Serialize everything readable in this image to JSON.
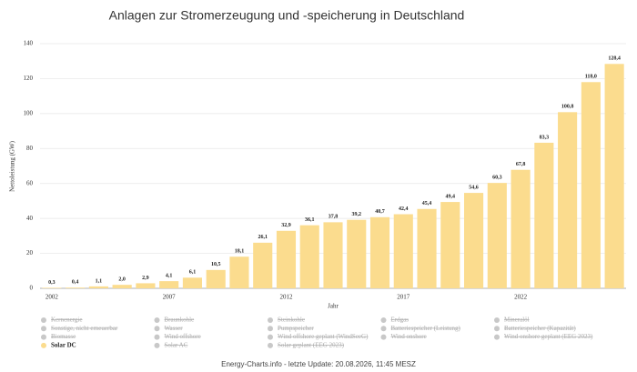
{
  "chart_data": {
    "type": "bar",
    "title": "Anlagen zur Stromerzeugung und -speicherung in Deutschland",
    "x_label": "Jahr",
    "y_label": "Nettoleistung (GW)",
    "categories": [
      "2002",
      null,
      null,
      null,
      null,
      "2007",
      null,
      null,
      null,
      null,
      "2012",
      null,
      null,
      null,
      null,
      "2017",
      null,
      null,
      null,
      null,
      "2022",
      null,
      null,
      null,
      null
    ],
    "ylim": [
      0,
      140
    ],
    "yticks": [
      0,
      20,
      40,
      60,
      80,
      100,
      120,
      140
    ],
    "grid": true,
    "series": [
      {
        "name": "Kernenergie",
        "visible": false
      },
      {
        "name": "Braunkohle",
        "visible": false
      },
      {
        "name": "Steinkohle",
        "visible": false
      },
      {
        "name": "Erdgas",
        "visible": false
      },
      {
        "name": "Mineralöl",
        "visible": false
      },
      {
        "name": "Sonstige, nicht erneuerbar",
        "visible": false
      },
      {
        "name": "Wasser",
        "visible": false
      },
      {
        "name": "Pumpspeicher",
        "visible": false
      },
      {
        "name": "Batteriespeicher (Leistung)",
        "visible": false
      },
      {
        "name": "Batteriespeicher (Kapazität)",
        "visible": false
      },
      {
        "name": "Biomasse",
        "visible": false
      },
      {
        "name": "Wind offshore",
        "visible": false
      },
      {
        "name": "Wind offshore geplant (WindSeeG)",
        "visible": false
      },
      {
        "name": "Wind onshore",
        "visible": false
      },
      {
        "name": "Wind onshore geplant (EEG 2023)",
        "visible": false
      },
      {
        "name": "Solar DC",
        "visible": true,
        "color": "#fbdc8e",
        "values": [
          0.3,
          0.4,
          1.1,
          2.0,
          2.9,
          4.1,
          6.1,
          10.5,
          18.1,
          26.1,
          32.9,
          36.1,
          37.8,
          39.2,
          40.7,
          42.4,
          45.4,
          49.4,
          54.6,
          60.3,
          67.8,
          83.3,
          100.8,
          118.0,
          128.4
        ],
        "value_labels": [
          "0,3",
          "0,4",
          "1,1",
          "2,0",
          "2,9",
          "4,1",
          "6,1",
          "10,5",
          "18,1",
          "26,1",
          "32,9",
          "36,1",
          "37,8",
          "39,2",
          "40,7",
          "42,4",
          "45,4",
          "49,4",
          "54,6",
          "60,3",
          "67,8",
          "83,3",
          "100,8",
          "118,0",
          "128,4"
        ]
      },
      {
        "name": "Solar AC",
        "visible": false
      },
      {
        "name": "Solar geplant (EEG 2023)",
        "visible": false
      }
    ],
    "footer": "Energy-Charts.info - letzte Update: 20.08.2026, 11:45 MESZ"
  }
}
